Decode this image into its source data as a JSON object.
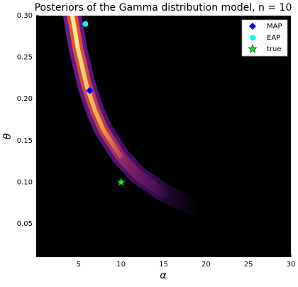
{
  "chart_data": {
    "type": "scatter",
    "title": "Posteriors of the Gamma distribution model, n = 10",
    "xlabel": "α",
    "ylabel": "θ",
    "xlim": [
      0,
      30
    ],
    "ylim": [
      0.01,
      0.3
    ],
    "xticks": [
      5,
      10,
      15,
      20,
      25,
      30
    ],
    "yticks": [
      0.05,
      {
        "value": 0.1,
        "label": "0.10"
      },
      0.15,
      {
        "value": 0.2,
        "label": "0.20"
      },
      0.25,
      {
        "value": 0.3,
        "label": "0.30"
      }
    ],
    "grid": false,
    "legend": "upper right",
    "series": [
      {
        "name": "MAP",
        "color": "#0000ff",
        "marker": "diamond",
        "x": [
          6.3
        ],
        "values": [
          0.21
        ]
      },
      {
        "name": "EAP",
        "color": "#00ffff",
        "marker": "circle",
        "x": [
          5.8
        ],
        "values": [
          0.29
        ]
      },
      {
        "name": "true",
        "color": "#22dd22",
        "marker": "star",
        "x": [
          10
        ],
        "values": [
          0.1
        ]
      }
    ]
  }
}
